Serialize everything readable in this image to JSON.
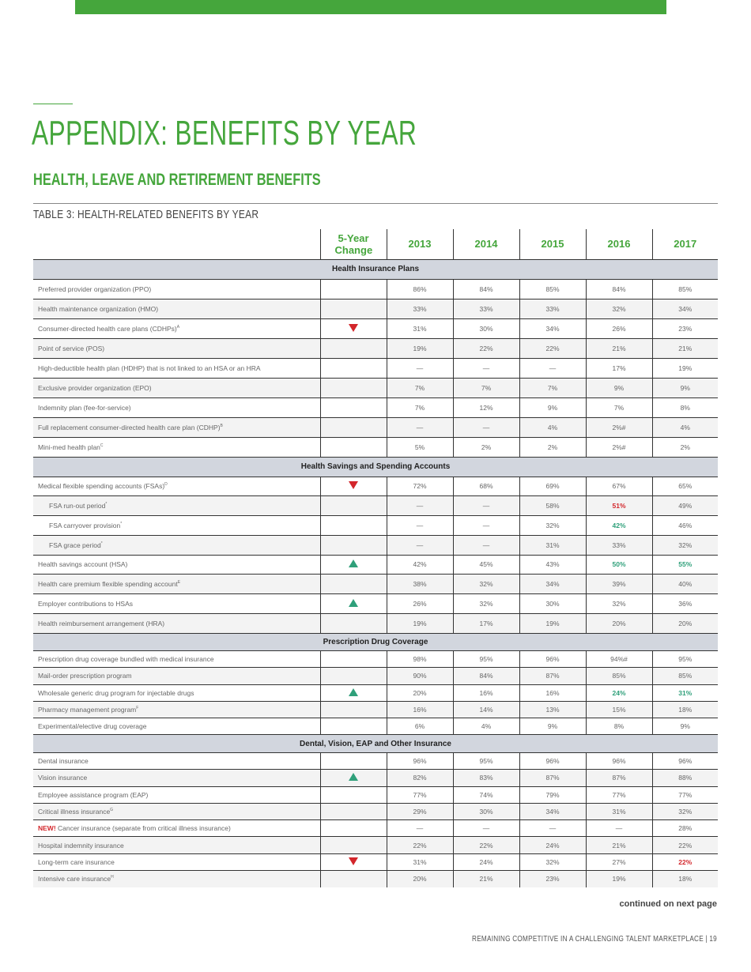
{
  "colors": {
    "accent": "#45a63c",
    "decrease": "#d3262b",
    "increase": "#2fa07a",
    "section_bg": "#d2d6de"
  },
  "title": "APPENDIX: BENEFITS BY YEAR",
  "subtitle": "HEALTH, LEAVE AND RETIREMENT BENEFITS",
  "table_title": "TABLE 3: HEALTH-RELATED BENEFITS BY YEAR",
  "table": {
    "headers": [
      "5-Year Change",
      "2013",
      "2014",
      "2015",
      "2016",
      "2017"
    ],
    "sections": [
      {
        "title": "Health Insurance Plans",
        "row_height": 25,
        "rows": [
          {
            "label": "Preferred provider organization (PPO)",
            "values": [
              "86%",
              "84%",
              "85%",
              "84%",
              "85%"
            ]
          },
          {
            "label": "Health maintenance organization (HMO)",
            "values": [
              "33%",
              "33%",
              "33%",
              "32%",
              "34%"
            ]
          },
          {
            "label": "Consumer-directed health care plans (CDHPs)",
            "sup": "A",
            "change": "down",
            "values": [
              "31%",
              "30%",
              "34%",
              "26%",
              "23%"
            ]
          },
          {
            "label": "Point of service (POS)",
            "values": [
              "19%",
              "22%",
              "22%",
              "21%",
              "21%"
            ]
          },
          {
            "label": "High-deductible health plan (HDHP) that is not linked to an HSA or an HRA",
            "values": [
              "—",
              "—",
              "—",
              "17%",
              "19%"
            ]
          },
          {
            "label": "Exclusive provider organization (EPO)",
            "values": [
              "7%",
              "7%",
              "7%",
              "9%",
              "9%"
            ]
          },
          {
            "label": "Indemnity plan (fee-for-service)",
            "values": [
              "7%",
              "12%",
              "9%",
              "7%",
              "8%"
            ]
          },
          {
            "label": "Full replacement consumer-directed health care plan (CDHP)",
            "sup": "B",
            "values": [
              "—",
              "—",
              "4%",
              "2%#",
              "4%"
            ]
          },
          {
            "label": "Mini-med health plan",
            "sup": "C",
            "values": [
              "5%",
              "2%",
              "2%",
              "2%#",
              "2%"
            ]
          }
        ]
      },
      {
        "title": "Health Savings and Spending Accounts",
        "row_height": 24.75,
        "rows": [
          {
            "label": "Medical flexible spending accounts (FSAs)",
            "sup": "D",
            "change": "down",
            "values": [
              "72%",
              "68%",
              "69%",
              "67%",
              "65%"
            ]
          },
          {
            "label": "FSA run-out period",
            "sup": "*",
            "indent": true,
            "values": [
              "—",
              "—",
              "58%",
              "51%",
              "49%"
            ],
            "highlight": [
              null,
              null,
              null,
              "red",
              null
            ]
          },
          {
            "label": "FSA carryover provision",
            "sup": "*",
            "indent": true,
            "values": [
              "—",
              "—",
              "32%",
              "42%",
              "46%"
            ],
            "highlight": [
              null,
              null,
              null,
              "green",
              null
            ]
          },
          {
            "label": "FSA grace period",
            "sup": "*",
            "indent": true,
            "values": [
              "—",
              "—",
              "31%",
              "33%",
              "32%"
            ]
          },
          {
            "label": "Health savings account (HSA)",
            "change": "up",
            "values": [
              "42%",
              "45%",
              "43%",
              "50%",
              "55%"
            ],
            "highlight": [
              null,
              null,
              null,
              "green",
              "green"
            ]
          },
          {
            "label": "Health care premium flexible spending account",
            "sup": "E",
            "values": [
              "38%",
              "32%",
              "34%",
              "39%",
              "40%"
            ]
          },
          {
            "label": "Employer contributions to HSAs",
            "change": "up",
            "values": [
              "26%",
              "32%",
              "30%",
              "32%",
              "36%"
            ]
          },
          {
            "label": "Health reimbursement arrangement (HRA)",
            "values": [
              "19%",
              "17%",
              "19%",
              "20%",
              "20%"
            ]
          }
        ]
      },
      {
        "title": "Prescription Drug Coverage",
        "row_height": 21.3,
        "rows": [
          {
            "label": "Prescription drug coverage bundled with medical insurance",
            "values": [
              "98%",
              "95%",
              "96%",
              "94%#",
              "95%"
            ]
          },
          {
            "label": "Mail-order prescription program",
            "values": [
              "90%",
              "84%",
              "87%",
              "85%",
              "85%"
            ]
          },
          {
            "label": "Wholesale generic drug program for injectable drugs",
            "change": "up",
            "values": [
              "20%",
              "16%",
              "16%",
              "24%",
              "31%"
            ],
            "highlight": [
              null,
              null,
              null,
              "green",
              "green"
            ]
          },
          {
            "label": "Pharmacy management program",
            "sup": "F",
            "values": [
              "16%",
              "14%",
              "13%",
              "15%",
              "18%"
            ]
          },
          {
            "label": "Experimental/elective drug coverage",
            "values": [
              "6%",
              "4%",
              "9%",
              "8%",
              "9%"
            ]
          }
        ]
      },
      {
        "title": "Dental, Vision, EAP and Other Insurance",
        "row_height": 21.3,
        "rows": [
          {
            "label": "Dental insurance",
            "values": [
              "96%",
              "95%",
              "96%",
              "96%",
              "96%"
            ]
          },
          {
            "label": "Vision insurance",
            "change": "up",
            "values": [
              "82%",
              "83%",
              "87%",
              "87%",
              "88%"
            ]
          },
          {
            "label": "Employee assistance program (EAP)",
            "values": [
              "77%",
              "74%",
              "79%",
              "77%",
              "77%"
            ]
          },
          {
            "label": "Critical illness insurance",
            "sup": "G",
            "values": [
              "29%",
              "30%",
              "34%",
              "31%",
              "32%"
            ]
          },
          {
            "label": "Cancer insurance (separate from critical illness insurance)",
            "badge": "NEW!",
            "values": [
              "—",
              "—",
              "—",
              "—",
              "28%"
            ]
          },
          {
            "label": "Hospital indemnity insurance",
            "values": [
              "22%",
              "22%",
              "24%",
              "21%",
              "22%"
            ]
          },
          {
            "label": "Long-term care insurance",
            "change": "down",
            "values": [
              "31%",
              "24%",
              "32%",
              "27%",
              "22%"
            ],
            "highlight": [
              null,
              null,
              null,
              null,
              "red"
            ]
          },
          {
            "label": "Intensive care insurance",
            "sup": "H",
            "values": [
              "20%",
              "21%",
              "23%",
              "19%",
              "18%"
            ]
          }
        ]
      }
    ]
  },
  "continued": "continued on next page",
  "footer": "REMAINING COMPETITIVE IN A CHALLENGING TALENT MARKETPLACE  |  19"
}
